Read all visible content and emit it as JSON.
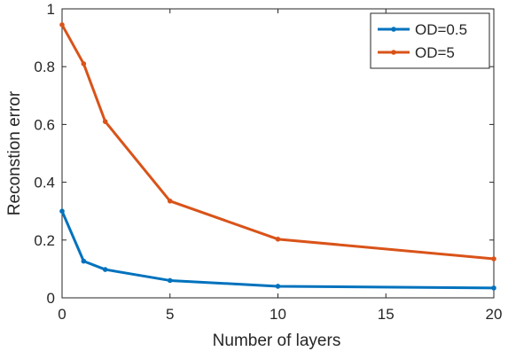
{
  "chart_data": {
    "type": "line",
    "title": "",
    "xlabel": "Number of layers",
    "ylabel": "Reconstion error",
    "xlim": [
      0,
      20
    ],
    "ylim": [
      0,
      1
    ],
    "xticks": [
      0,
      5,
      10,
      15,
      20
    ],
    "yticks": [
      0,
      0.2,
      0.4,
      0.6,
      0.8,
      1
    ],
    "ytick_labels": [
      "0",
      "0.2",
      "0.4",
      "0.6",
      "0.8",
      "1"
    ],
    "grid": false,
    "legend_position": "top-right",
    "series": [
      {
        "name": "OD=0.5",
        "color": "#0072BD",
        "x": [
          0,
          1,
          2,
          5,
          10,
          20
        ],
        "y": [
          0.3,
          0.127,
          0.098,
          0.06,
          0.04,
          0.034
        ]
      },
      {
        "name": "OD=5",
        "color": "#D95319",
        "x": [
          0,
          1,
          2,
          5,
          10,
          20
        ],
        "y": [
          0.945,
          0.81,
          0.61,
          0.335,
          0.203,
          0.135
        ]
      }
    ]
  }
}
